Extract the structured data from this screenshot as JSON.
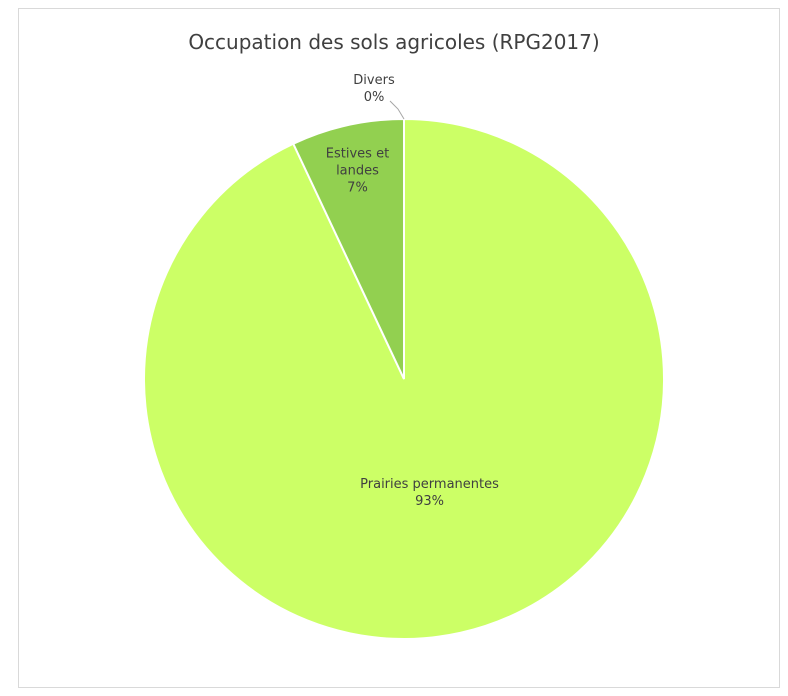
{
  "chart_data": {
    "type": "pie",
    "title": "Occupation des sols agricoles (RPG2017)",
    "categories": [
      "Prairies permanentes",
      "Estives et landes",
      "Divers"
    ],
    "values": [
      93,
      7,
      0
    ],
    "value_labels": [
      "93%",
      "7%",
      "0%"
    ],
    "colors": [
      "#ccff66",
      "#92d050",
      "#a6a6a6"
    ]
  }
}
